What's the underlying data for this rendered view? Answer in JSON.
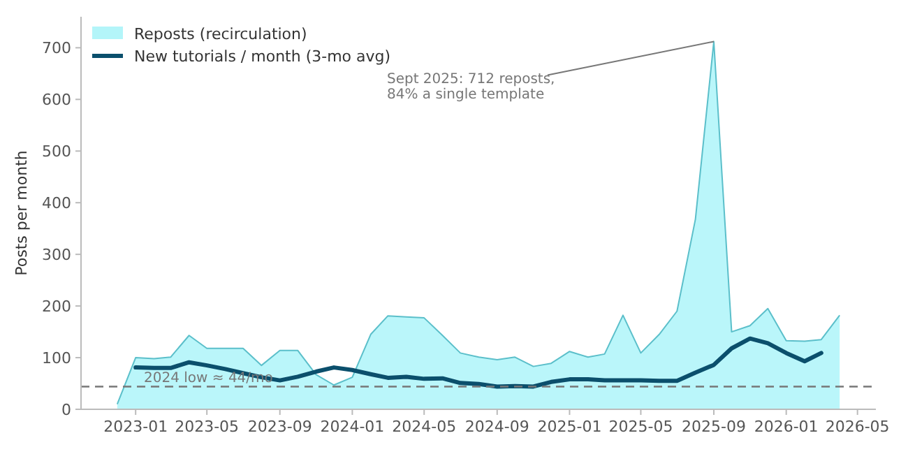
{
  "chart_data": {
    "type": "area",
    "ylabel": "Posts per month",
    "xlim": [
      "2022-10",
      "2026-06"
    ],
    "xticks": [
      {
        "value": "2023-01",
        "label": "2023-01"
      },
      {
        "value": "2023-05",
        "label": "2023-05"
      },
      {
        "value": "2023-09",
        "label": "2023-09"
      },
      {
        "value": "2024-01",
        "label": "2024-01"
      },
      {
        "value": "2024-05",
        "label": "2024-05"
      },
      {
        "value": "2024-09",
        "label": "2024-09"
      },
      {
        "value": "2025-01",
        "label": "2025-01"
      },
      {
        "value": "2025-05",
        "label": "2025-05"
      },
      {
        "value": "2025-09",
        "label": "2025-09"
      },
      {
        "value": "2026-01",
        "label": "2026-01"
      },
      {
        "value": "2026-05",
        "label": "2026-05"
      }
    ],
    "ylim": [
      0,
      760
    ],
    "yticks": [
      0,
      100,
      200,
      300,
      400,
      500,
      600,
      700
    ],
    "grid": false,
    "legend": "top left",
    "series": [
      {
        "name": "Reposts (recirculation)",
        "color": "#b3f5f9",
        "x": [
          "2022-12",
          "2023-01",
          "2023-02",
          "2023-03",
          "2023-04",
          "2023-05",
          "2023-06",
          "2023-07",
          "2023-08",
          "2023-09",
          "2023-10",
          "2023-11",
          "2023-12",
          "2024-01",
          "2024-02",
          "2024-03",
          "2024-04",
          "2024-05",
          "2024-06",
          "2024-07",
          "2024-08",
          "2024-09",
          "2024-10",
          "2024-11",
          "2024-12",
          "2025-01",
          "2025-02",
          "2025-03",
          "2025-04",
          "2025-05",
          "2025-06",
          "2025-07",
          "2025-08",
          "2025-09",
          "2025-10",
          "2025-11",
          "2025-12",
          "2026-01",
          "2026-02",
          "2026-03",
          "2026-04"
        ],
        "values": [
          10,
          100,
          98,
          101,
          143,
          118,
          118,
          118,
          85,
          114,
          114,
          67,
          47,
          62,
          145,
          181,
          179,
          177,
          143,
          109,
          101,
          96,
          101,
          83,
          89,
          112,
          101,
          107,
          182,
          109,
          145,
          190,
          368,
          712,
          150,
          162,
          195,
          133,
          132,
          135,
          182
        ]
      },
      {
        "name": "New tutorials / month (3-mo avg)",
        "type": "line",
        "color": "#0b4f6c",
        "x": [
          "2023-01",
          "2023-02",
          "2023-03",
          "2023-04",
          "2023-05",
          "2023-06",
          "2023-07",
          "2023-08",
          "2023-09",
          "2023-10",
          "2023-11",
          "2023-12",
          "2024-01",
          "2024-02",
          "2024-03",
          "2024-04",
          "2024-05",
          "2024-06",
          "2024-07",
          "2024-08",
          "2024-09",
          "2024-10",
          "2024-11",
          "2024-12",
          "2025-01",
          "2025-02",
          "2025-03",
          "2025-04",
          "2025-05",
          "2025-06",
          "2025-07",
          "2025-08",
          "2025-09",
          "2025-10",
          "2025-11",
          "2025-12",
          "2026-01",
          "2026-02",
          "2026-03"
        ],
        "values": [
          81,
          80,
          80,
          91,
          85,
          78,
          70,
          62,
          56,
          63,
          73,
          81,
          76,
          68,
          61,
          63,
          59,
          60,
          51,
          49,
          44,
          45,
          44,
          53,
          58,
          58,
          56,
          56,
          56,
          55,
          55,
          71,
          86,
          118,
          137,
          128,
          109,
          93,
          109
        ]
      }
    ],
    "ref_lines": [
      {
        "axis": "y",
        "value": 44,
        "label": "2024 low ≈ 44/mo",
        "color": "#777777",
        "line_style": "dashed"
      }
    ],
    "annotations": [
      {
        "text": "Sept 2025: 712 reposts,\n84% a single template",
        "x": "2025-09",
        "y": 712
      }
    ]
  }
}
